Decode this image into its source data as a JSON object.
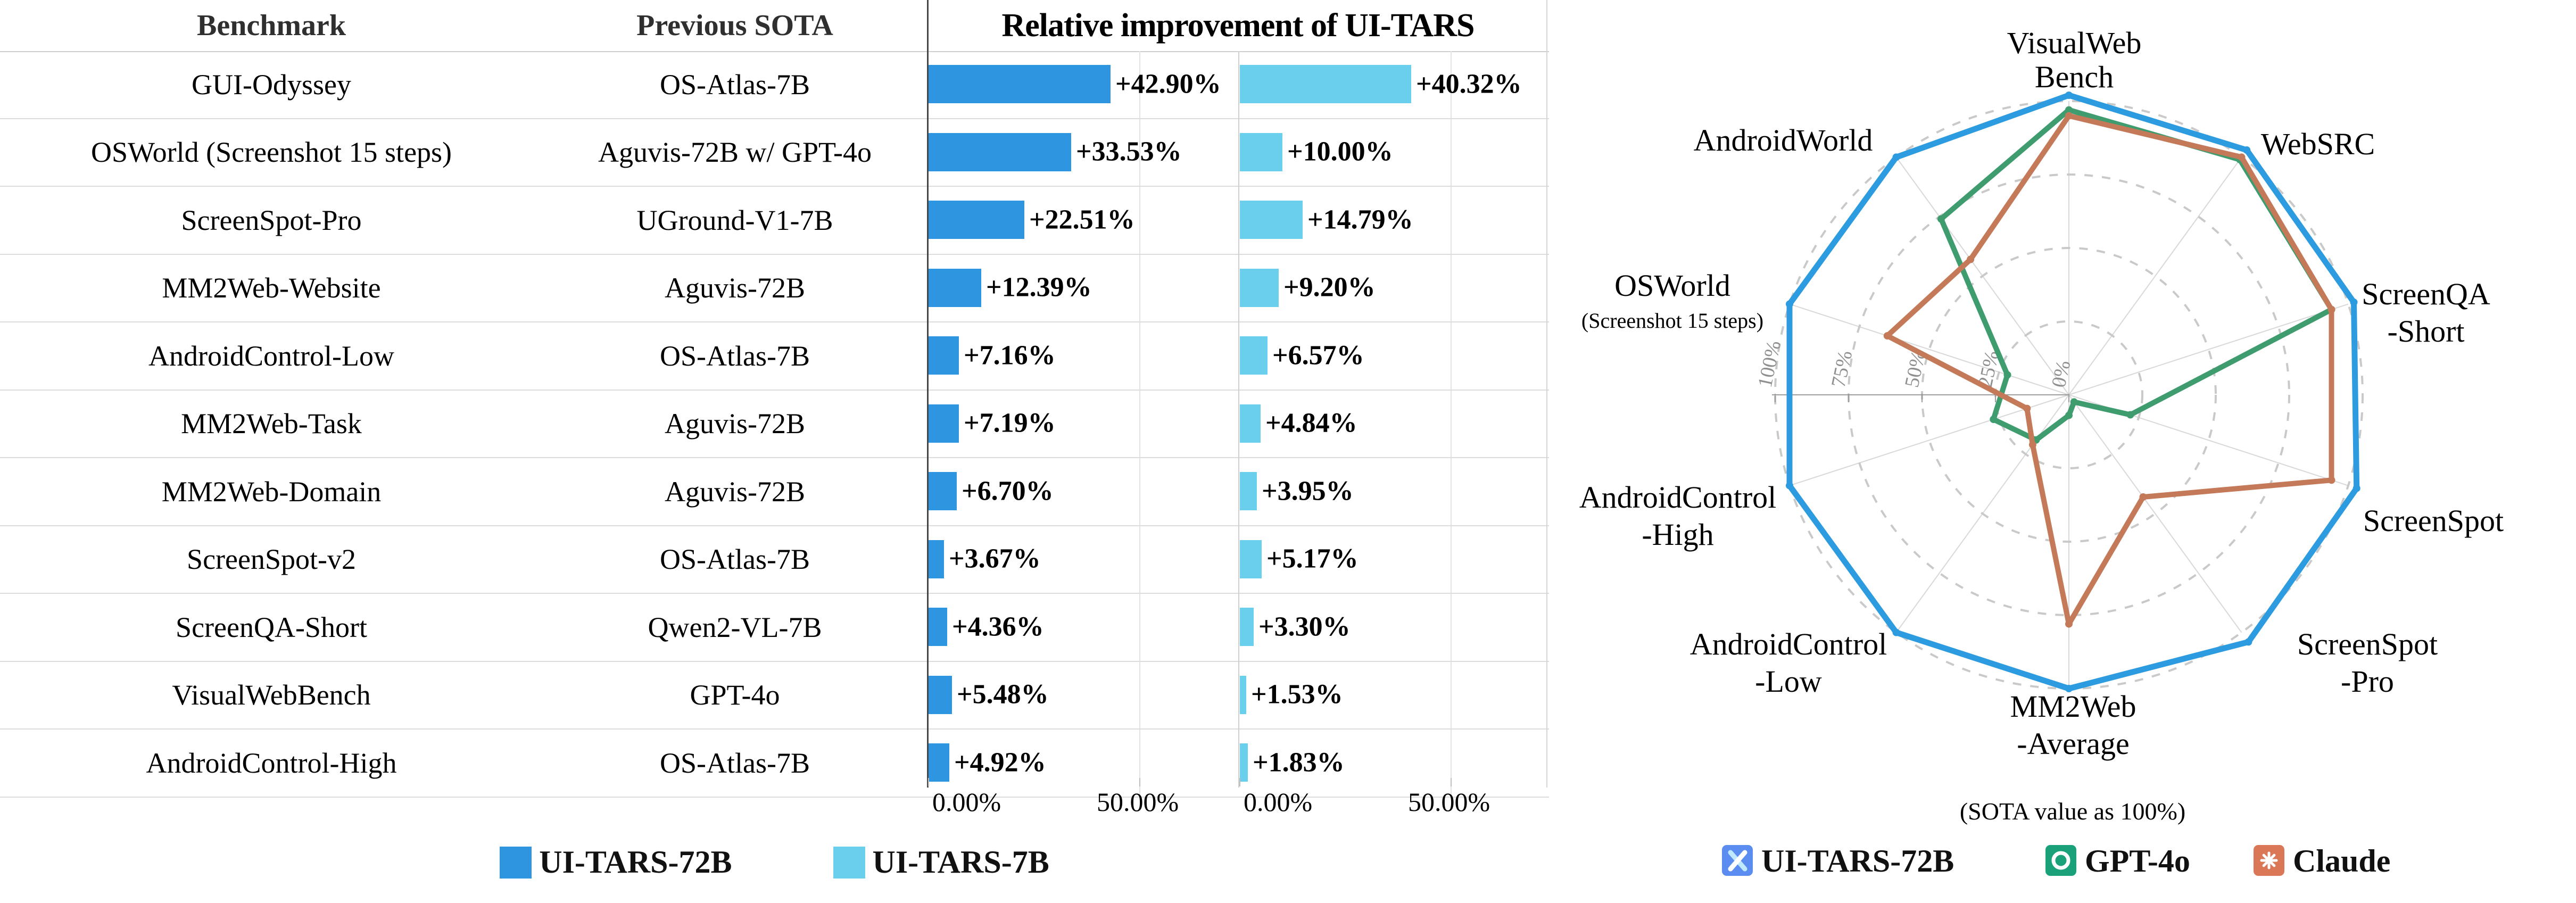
{
  "chart_data": [
    {
      "type": "bar",
      "title": "Relative improvement of UI-TARS",
      "col_headers": {
        "benchmark": "Benchmark",
        "previous_sota": "Previous SOTA"
      },
      "categories": [
        "GUI-Odyssey",
        "OSWorld (Screenshot 15 steps)",
        "ScreenSpot-Pro",
        "MM2Web-Website",
        "AndroidControl-Low",
        "MM2Web-Task",
        "MM2Web-Domain",
        "ScreenSpot-v2",
        "ScreenQA-Short",
        "VisualWebBench",
        "AndroidControl-High"
      ],
      "previous_sota": [
        "OS-Atlas-7B",
        "Aguvis-72B w/ GPT-4o",
        "UGround-V1-7B",
        "Aguvis-72B",
        "OS-Atlas-7B",
        "Aguvis-72B",
        "Aguvis-72B",
        "OS-Atlas-7B",
        "Qwen2-VL-7B",
        "GPT-4o",
        "OS-Atlas-7B"
      ],
      "series": [
        {
          "name": "UI-TARS-72B",
          "color": "#2e96e0",
          "values": [
            42.9,
            33.53,
            22.51,
            12.39,
            7.16,
            7.19,
            6.7,
            3.67,
            4.36,
            5.48,
            4.92
          ],
          "labels": [
            "+42.90%",
            "+33.53%",
            "+22.51%",
            "+12.39%",
            "+7.16%",
            "+7.19%",
            "+6.70%",
            "+3.67%",
            "+4.36%",
            "+5.48%",
            "+4.92%"
          ]
        },
        {
          "name": "UI-TARS-7B",
          "color": "#69cfec",
          "values": [
            40.32,
            10.0,
            14.79,
            9.2,
            6.57,
            4.84,
            3.95,
            5.17,
            3.3,
            1.53,
            1.83
          ],
          "labels": [
            "+40.32%",
            "+10.00%",
            "+14.79%",
            "+9.20%",
            "+6.57%",
            "+4.84%",
            "+3.95%",
            "+5.17%",
            "+3.30%",
            "+1.53%",
            "+1.83%"
          ]
        }
      ],
      "xlabel": "",
      "ylabel": "",
      "xlim": [
        0,
        73.3
      ],
      "x_ticks": [
        "0.00%",
        "50.00%"
      ],
      "x_tick_values": [
        0,
        50
      ],
      "grid": true,
      "legend_position": "bottom"
    },
    {
      "type": "radar",
      "caption": "(SOTA value as 100%)",
      "axes": [
        "VisualWebBench",
        "WebSRC",
        "ScreenQA-Short",
        "ScreenSpot",
        "ScreenSpot-Pro",
        "MM2Web-Average",
        "AndroidControl-Low",
        "AndroidControl-High",
        "OSWorld (Screenshot 15 steps)",
        "AndroidWorld"
      ],
      "axis_display": [
        [
          "VisualWeb",
          "Bench"
        ],
        [
          "WebSRC"
        ],
        [
          "ScreenQA",
          "-Short"
        ],
        [
          "ScreenSpot"
        ],
        [
          "ScreenSpot",
          "-Pro"
        ],
        [
          "MM2Web",
          "-Average"
        ],
        [
          "AndroidControl",
          "-Low"
        ],
        [
          "AndroidControl",
          "-High"
        ],
        [
          "OSWorld",
          "(Screenshot 15 steps)"
        ],
        [
          "AndroidWorld"
        ]
      ],
      "r_ticks": [
        "0%",
        "25%",
        "50%",
        "75%",
        "100%"
      ],
      "r_tick_values": [
        0,
        25,
        50,
        75,
        100
      ],
      "rlim": [
        0,
        100
      ],
      "grid": "dashed-circles",
      "series": [
        {
          "name": "UI-TARS-72B",
          "icon": "ui-tars-logo",
          "icon_color": "#5b8cf0",
          "color": "#2d9bdf",
          "values": [
            102,
            103,
            102,
            103,
            104,
            100,
            100,
            100,
            100,
            100
          ]
        },
        {
          "name": "GPT-4o",
          "icon": "openai-logo",
          "icon_color": "#1aa179",
          "color": "#3f9c6f",
          "values": [
            97,
            99,
            94,
            22,
            3,
            7,
            19,
            27,
            22,
            74
          ]
        },
        {
          "name": "Claude",
          "icon": "claude-logo",
          "icon_color": "#d97757",
          "color": "#c47a58",
          "values": [
            95,
            100,
            94,
            94,
            43,
            78,
            21,
            15,
            65,
            57
          ]
        }
      ],
      "legend_position": "bottom"
    }
  ]
}
